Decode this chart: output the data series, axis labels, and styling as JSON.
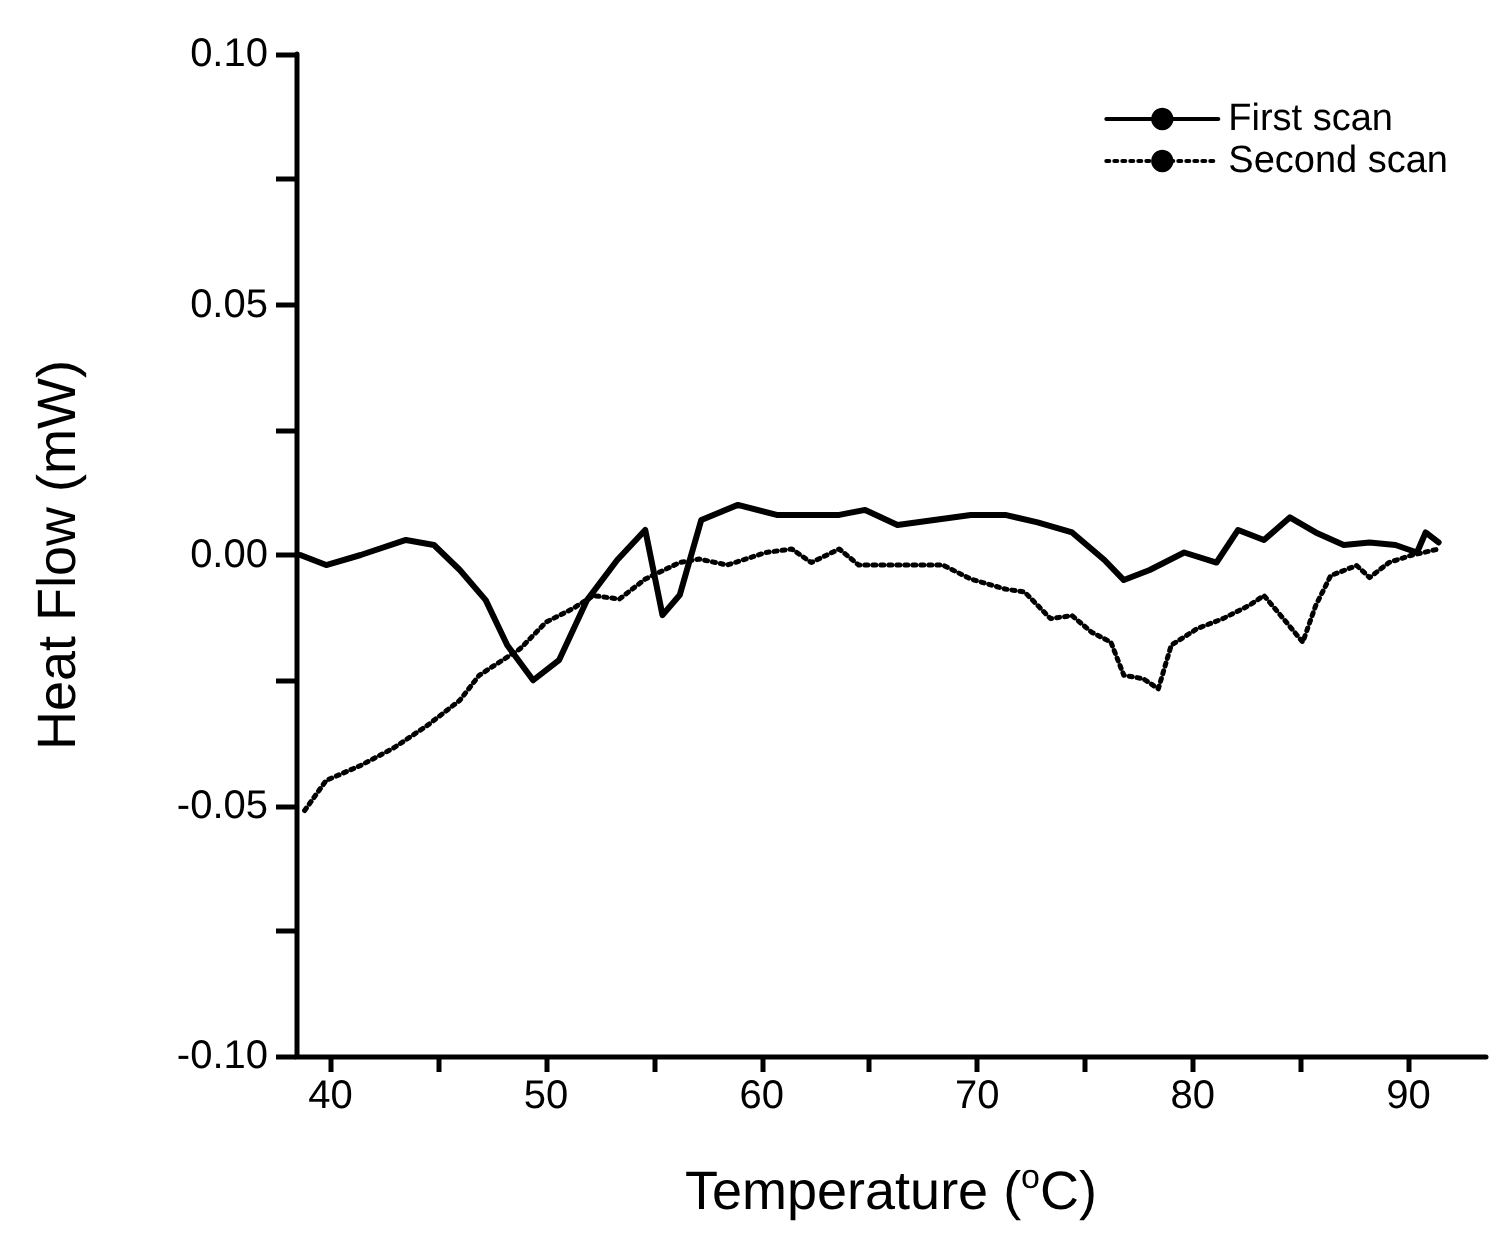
{
  "chart_data": {
    "type": "line",
    "xlabel": "Temperature ($^{o}$C)",
    "ylabel": "Heat Flow (mW)",
    "xlim": [
      38.4,
      93.6
    ],
    "xticks": [
      40,
      {
        "value": 45,
        "label": null
      },
      50,
      {
        "value": 55,
        "label": null
      },
      60,
      {
        "value": 65,
        "label": null
      },
      70,
      {
        "value": 75,
        "label": null
      },
      80,
      {
        "value": 85,
        "label": null
      },
      90
    ],
    "ylim": [
      -0.1,
      0.1
    ],
    "yticks": [
      {
        "value": -0.1,
        "label": "-0.10"
      },
      {
        "value": -0.075,
        "label": null
      },
      {
        "value": -0.05,
        "label": "-0.05"
      },
      {
        "value": -0.025,
        "label": null
      },
      {
        "value": 0,
        "label": "0.00"
      },
      {
        "value": 0.025,
        "label": null
      },
      {
        "value": 0.05,
        "label": "0.05"
      },
      {
        "value": 0.075,
        "label": null
      },
      {
        "value": 0.1,
        "label": "0.10"
      }
    ],
    "grid": false,
    "legend": "top right",
    "marker": "none",
    "series": [
      {
        "name": "First scan",
        "color": "#000000",
        "line_style": "solid",
        "x": [
          38.6,
          39.8,
          41.4,
          43.5,
          44.8,
          46.0,
          47.2,
          48.2,
          49.4,
          50.6,
          51.9,
          53.3,
          54.6,
          55.4,
          56.2,
          57.2,
          58.9,
          60.7,
          63.6,
          64.8,
          66.3,
          69.7,
          71.3,
          72.8,
          74.4,
          75.9,
          76.8,
          78.0,
          79.6,
          81.1,
          82.1,
          83.3,
          84.5,
          85.7,
          87.0,
          88.2,
          89.4,
          90.4,
          90.8,
          91.4
        ],
        "values": [
          0.0,
          -0.002,
          0.0,
          0.003,
          0.002,
          -0.003,
          -0.009,
          -0.018,
          -0.025,
          -0.021,
          -0.009,
          -0.001,
          0.005,
          -0.012,
          -0.008,
          0.007,
          0.01,
          0.008,
          0.008,
          0.009,
          0.006,
          0.008,
          0.008,
          0.0065,
          0.0045,
          -0.001,
          -0.005,
          -0.003,
          0.0005,
          -0.0015,
          0.005,
          0.003,
          0.0075,
          0.0045,
          0.002,
          0.0025,
          0.002,
          0.0005,
          0.0045,
          0.0025
        ]
      },
      {
        "name": "Second scan",
        "color": "#000000",
        "line_style": "dotted",
        "x": [
          38.8,
          39.8,
          41.4,
          42.9,
          44.5,
          46.0,
          46.9,
          48.8,
          50.0,
          51.2,
          52.2,
          53.4,
          54.6,
          56.2,
          57.1,
          58.4,
          60.2,
          61.4,
          62.3,
          63.6,
          64.5,
          66.6,
          68.4,
          69.7,
          71.3,
          72.2,
          73.4,
          74.4,
          75.3,
          76.2,
          76.8,
          77.7,
          78.4,
          79.0,
          80.2,
          81.4,
          82.6,
          83.3,
          84.2,
          85.1,
          85.7,
          86.4,
          87.6,
          88.2,
          89.1,
          90.1,
          91.4
        ],
        "values": [
          -0.051,
          -0.045,
          -0.042,
          -0.0386,
          -0.034,
          -0.029,
          -0.024,
          -0.0187,
          -0.0134,
          -0.0108,
          -0.0081,
          -0.0088,
          -0.0048,
          -0.0015,
          -0.0008,
          -0.002,
          0.0005,
          0.0012,
          -0.0015,
          0.0012,
          -0.002,
          -0.002,
          -0.002,
          -0.0048,
          -0.0068,
          -0.0074,
          -0.0127,
          -0.0121,
          -0.0154,
          -0.0174,
          -0.024,
          -0.0247,
          -0.0267,
          -0.018,
          -0.0147,
          -0.0127,
          -0.0101,
          -0.0081,
          -0.0127,
          -0.0174,
          -0.0101,
          -0.0041,
          -0.0021,
          -0.0045,
          -0.0015,
          -0.0001,
          0.0012
        ]
      }
    ]
  }
}
